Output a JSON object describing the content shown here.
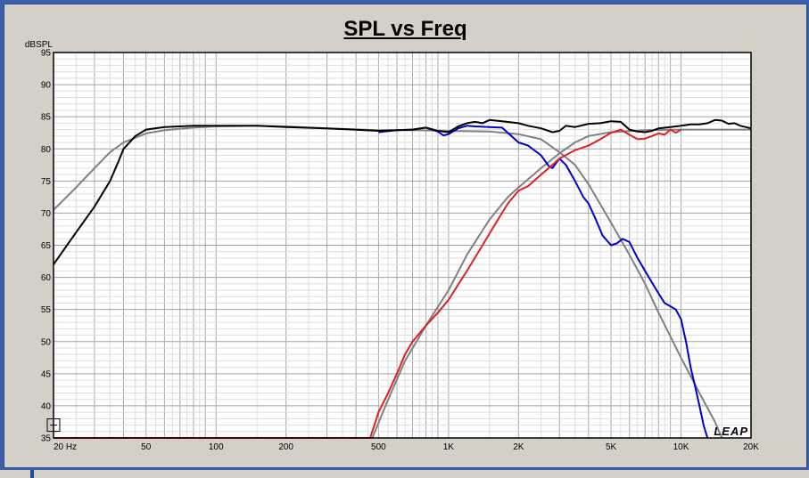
{
  "window": {
    "title": "SPL vs Freq"
  },
  "logo_text": "LEAP",
  "chart_data": {
    "type": "line",
    "title": "SPL vs Freq",
    "ylabel": "dBSPL",
    "xlabel": "",
    "xscale": "log",
    "xlim": [
      20,
      20000
    ],
    "ylim": [
      35,
      95
    ],
    "grid": true,
    "y_ticks": [
      35,
      40,
      45,
      50,
      55,
      60,
      65,
      70,
      75,
      80,
      85,
      90,
      95
    ],
    "x_ticks": [
      {
        "value": 20,
        "label": "20 Hz"
      },
      {
        "value": 50,
        "label": "50"
      },
      {
        "value": 100,
        "label": "100"
      },
      {
        "value": 200,
        "label": "200"
      },
      {
        "value": 500,
        "label": "500"
      },
      {
        "value": 1000,
        "label": "1K"
      },
      {
        "value": 2000,
        "label": "2K"
      },
      {
        "value": 5000,
        "label": "5K"
      },
      {
        "value": 10000,
        "label": "10K"
      },
      {
        "value": 20000,
        "label": "20K"
      }
    ],
    "series": [
      {
        "color": "#808080",
        "width": 2,
        "points": [
          [
            20,
            70.5
          ],
          [
            25,
            74
          ],
          [
            30,
            77
          ],
          [
            35,
            79.5
          ],
          [
            40,
            81
          ],
          [
            50,
            82.4
          ],
          [
            60,
            82.9
          ],
          [
            80,
            83.3
          ],
          [
            100,
            83.5
          ],
          [
            150,
            83.6
          ],
          [
            200,
            83.5
          ],
          [
            300,
            83.2
          ],
          [
            500,
            82.9
          ],
          [
            700,
            82.9
          ],
          [
            1000,
            82.8
          ],
          [
            1500,
            82.7
          ],
          [
            2000,
            82.3
          ],
          [
            2500,
            81.5
          ],
          [
            3000,
            79.5
          ],
          [
            3500,
            77.5
          ],
          [
            4000,
            74.5
          ],
          [
            5000,
            68.5
          ],
          [
            6000,
            63.5
          ],
          [
            7000,
            59
          ],
          [
            8000,
            54.5
          ],
          [
            10000,
            47.5
          ],
          [
            12000,
            42
          ],
          [
            14000,
            37.5
          ],
          [
            15000,
            35
          ]
        ]
      },
      {
        "color": "#808080",
        "width": 2,
        "points": [
          [
            470,
            35
          ],
          [
            550,
            41
          ],
          [
            650,
            47
          ],
          [
            800,
            52.5
          ],
          [
            1000,
            58
          ],
          [
            1200,
            63.5
          ],
          [
            1500,
            69
          ],
          [
            1800,
            72.5
          ],
          [
            2000,
            74
          ],
          [
            2500,
            77
          ],
          [
            3000,
            79.3
          ],
          [
            3500,
            81
          ],
          [
            4000,
            82
          ],
          [
            5000,
            82.6
          ],
          [
            7000,
            82.9
          ],
          [
            10000,
            83
          ],
          [
            15000,
            83
          ],
          [
            20000,
            83
          ]
        ]
      },
      {
        "color": "#0000d0",
        "width": 2,
        "points": [
          [
            500,
            82.6
          ],
          [
            600,
            82.9
          ],
          [
            700,
            83
          ],
          [
            800,
            83.3
          ],
          [
            900,
            82.7
          ],
          [
            950,
            82.1
          ],
          [
            1000,
            82.3
          ],
          [
            1100,
            83.2
          ],
          [
            1200,
            83.6
          ],
          [
            1300,
            83.5
          ],
          [
            1500,
            83.4
          ],
          [
            1700,
            83.3
          ],
          [
            1800,
            82.5
          ],
          [
            2000,
            81
          ],
          [
            2200,
            80.5
          ],
          [
            2500,
            79
          ],
          [
            2700,
            77.3
          ],
          [
            2800,
            77
          ],
          [
            3000,
            78.5
          ],
          [
            3200,
            77.5
          ],
          [
            3500,
            75
          ],
          [
            3800,
            72.5
          ],
          [
            4000,
            71.5
          ],
          [
            4300,
            69
          ],
          [
            4600,
            66.5
          ],
          [
            5000,
            65
          ],
          [
            5300,
            65.3
          ],
          [
            5600,
            66
          ],
          [
            6000,
            65.5
          ],
          [
            6500,
            63
          ],
          [
            7000,
            61
          ],
          [
            8000,
            57.5
          ],
          [
            8500,
            56
          ],
          [
            9000,
            55.5
          ],
          [
            9500,
            55
          ],
          [
            10000,
            53.5
          ],
          [
            10500,
            50
          ],
          [
            11000,
            46
          ],
          [
            11500,
            43
          ],
          [
            12000,
            40
          ],
          [
            12500,
            37
          ],
          [
            13000,
            35
          ]
        ]
      },
      {
        "color": "#e02020",
        "width": 2,
        "points": [
          [
            20,
            35
          ],
          [
            460,
            35
          ],
          [
            480,
            37
          ],
          [
            500,
            39
          ],
          [
            550,
            42
          ],
          [
            600,
            45
          ],
          [
            650,
            48
          ],
          [
            700,
            50
          ],
          [
            800,
            52.5
          ],
          [
            900,
            54.5
          ],
          [
            1000,
            56.5
          ],
          [
            1200,
            61
          ],
          [
            1400,
            65
          ],
          [
            1600,
            68.5
          ],
          [
            1800,
            71.5
          ],
          [
            2000,
            73.5
          ],
          [
            2200,
            74.2
          ],
          [
            2500,
            76
          ],
          [
            2800,
            77.5
          ],
          [
            3000,
            78.5
          ],
          [
            3500,
            79.8
          ],
          [
            4000,
            80.5
          ],
          [
            4500,
            81.5
          ],
          [
            5000,
            82.5
          ],
          [
            5500,
            83
          ],
          [
            6000,
            82.2
          ],
          [
            6500,
            81.5
          ],
          [
            7000,
            81.6
          ],
          [
            7500,
            82
          ],
          [
            8000,
            82.4
          ],
          [
            8500,
            82.2
          ],
          [
            9000,
            83
          ],
          [
            9500,
            82.5
          ],
          [
            10000,
            83
          ]
        ]
      },
      {
        "color": "#000000",
        "width": 2,
        "points": [
          [
            20,
            62
          ],
          [
            25,
            67
          ],
          [
            30,
            71
          ],
          [
            35,
            75
          ],
          [
            38,
            78
          ],
          [
            40,
            80
          ],
          [
            45,
            82
          ],
          [
            50,
            83
          ],
          [
            60,
            83.4
          ],
          [
            80,
            83.6
          ],
          [
            100,
            83.6
          ],
          [
            150,
            83.6
          ],
          [
            200,
            83.4
          ],
          [
            300,
            83.2
          ],
          [
            500,
            82.8
          ],
          [
            700,
            83
          ],
          [
            800,
            83.3
          ],
          [
            900,
            82.8
          ],
          [
            1000,
            82.6
          ],
          [
            1100,
            83.5
          ],
          [
            1200,
            84
          ],
          [
            1300,
            84.2
          ],
          [
            1400,
            84
          ],
          [
            1500,
            84.5
          ],
          [
            1700,
            84.3
          ],
          [
            2000,
            84
          ],
          [
            2200,
            83.6
          ],
          [
            2500,
            83.2
          ],
          [
            2800,
            82.6
          ],
          [
            3000,
            82.8
          ],
          [
            3200,
            83.6
          ],
          [
            3500,
            83.4
          ],
          [
            4000,
            83.9
          ],
          [
            4500,
            84
          ],
          [
            5000,
            84.3
          ],
          [
            5500,
            84.2
          ],
          [
            6000,
            83
          ],
          [
            6500,
            82.7
          ],
          [
            7000,
            82.6
          ],
          [
            7500,
            82.8
          ],
          [
            8000,
            83.2
          ],
          [
            9000,
            83.4
          ],
          [
            10000,
            83.6
          ],
          [
            11000,
            83.8
          ],
          [
            12000,
            83.8
          ],
          [
            13000,
            84
          ],
          [
            14000,
            84.5
          ],
          [
            15000,
            84.4
          ],
          [
            16000,
            83.9
          ],
          [
            17000,
            84
          ],
          [
            18000,
            83.6
          ],
          [
            20000,
            83.2
          ]
        ]
      }
    ]
  }
}
